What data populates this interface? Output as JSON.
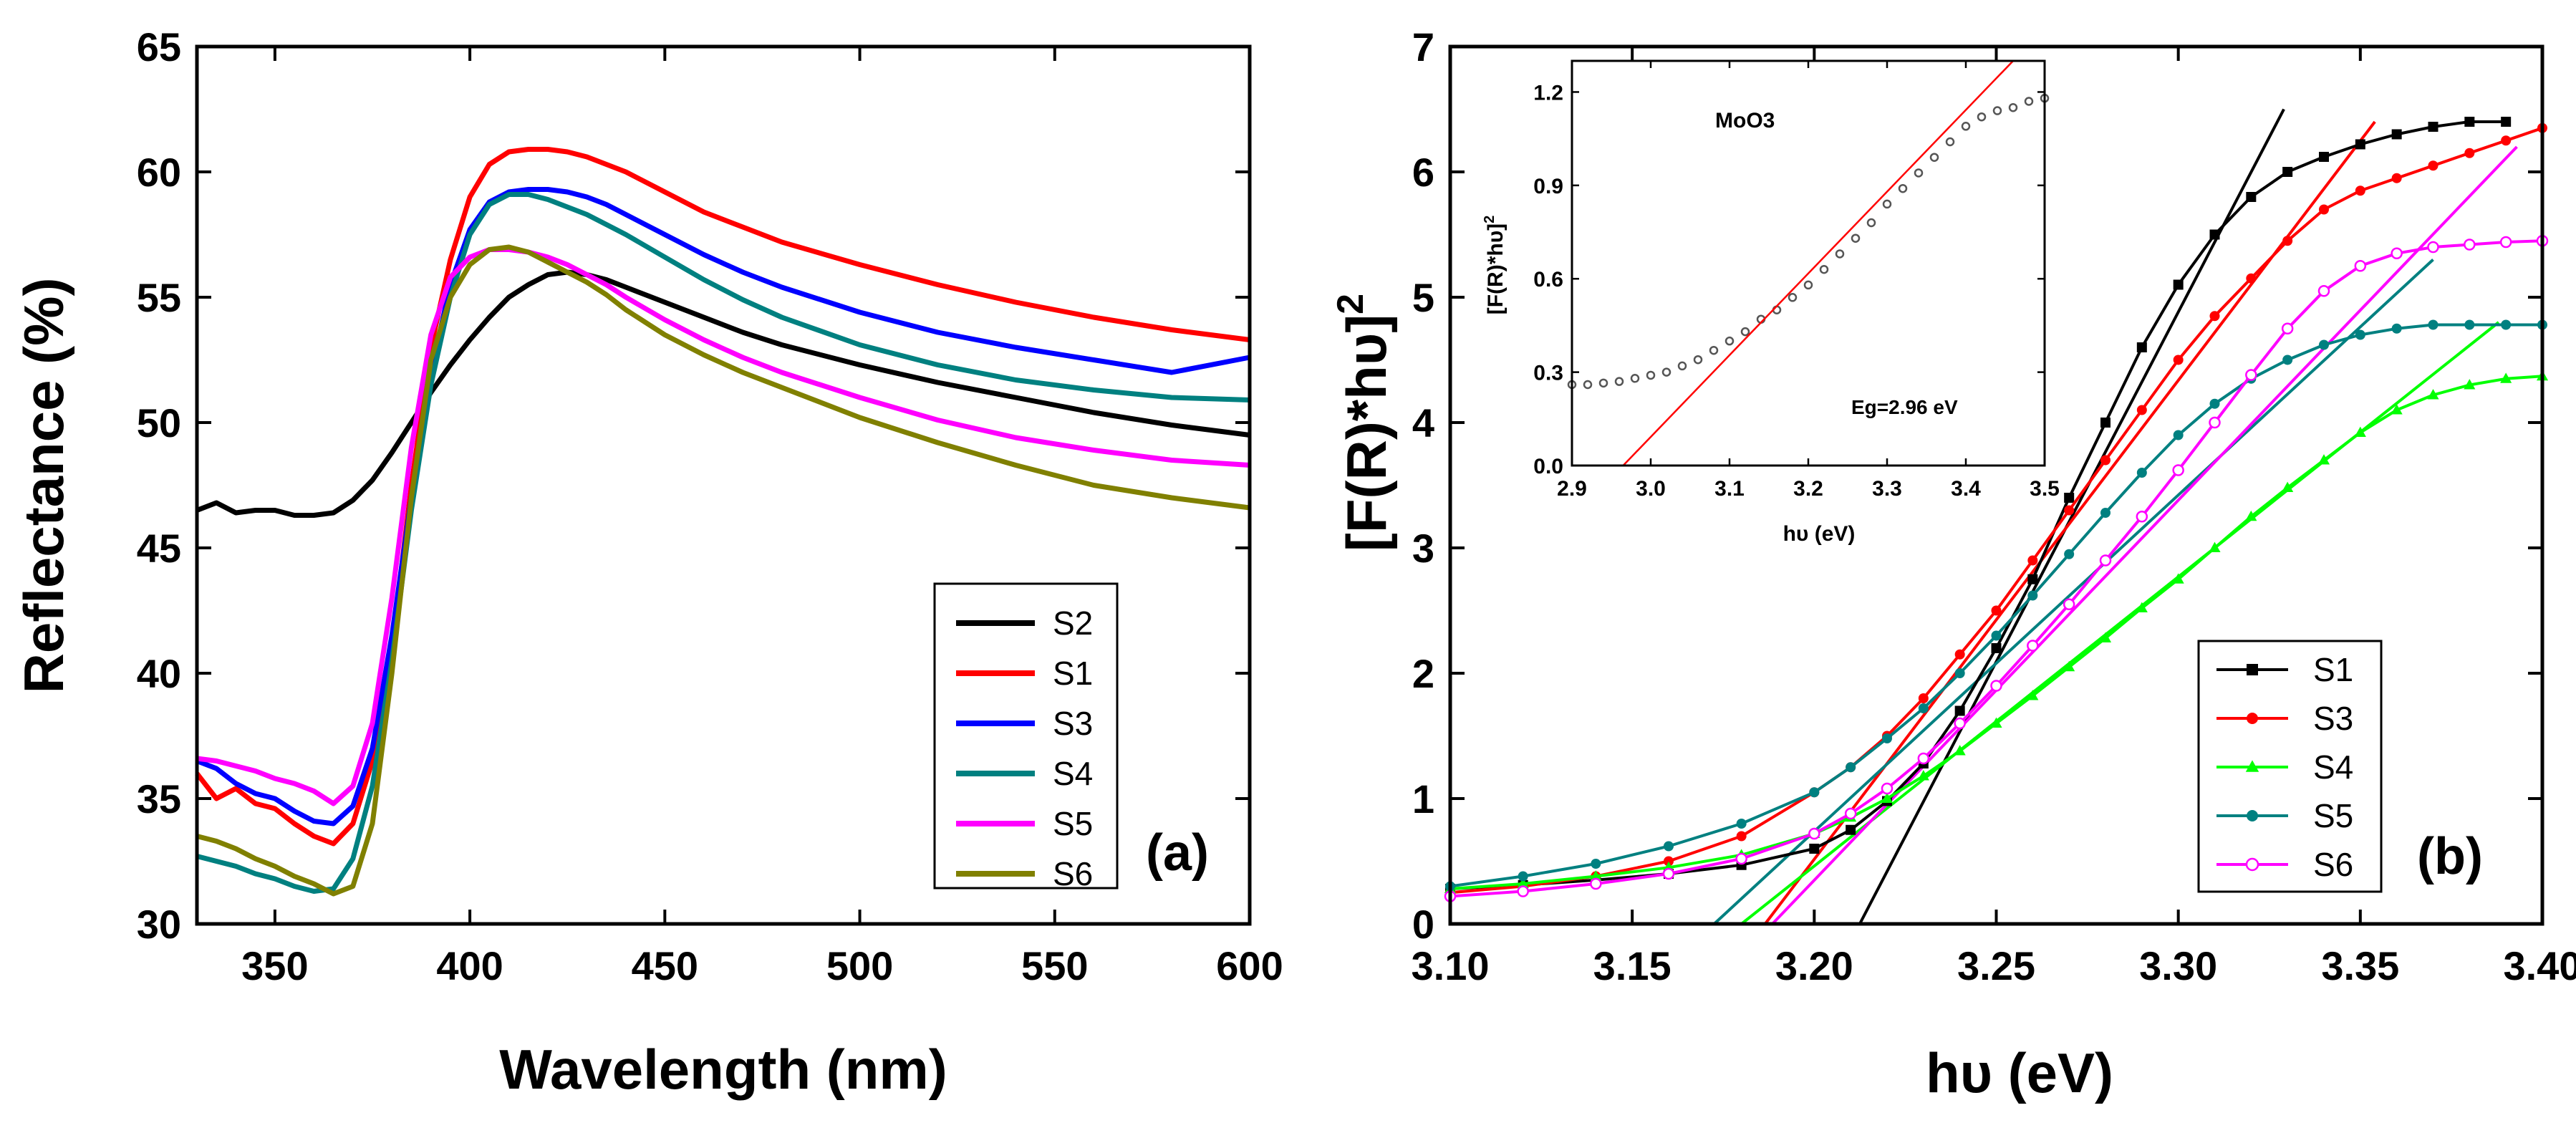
{
  "chart_data": [
    {
      "type": "line",
      "panel_label": "(a)",
      "xlabel": "Wavelength (nm)",
      "ylabel": "Reflectance (%)",
      "xlim": [
        330,
        600
      ],
      "ylim": [
        30,
        65
      ],
      "xticks": [
        "350",
        "400",
        "450",
        "500",
        "550",
        "600"
      ],
      "yticks": [
        "30",
        "35",
        "40",
        "45",
        "50",
        "55",
        "60",
        "65"
      ],
      "legend_position": "bottom-right",
      "series": [
        {
          "name": "S2",
          "color": "#000000",
          "x": [
            330,
            335,
            340,
            345,
            350,
            355,
            360,
            365,
            370,
            375,
            380,
            385,
            390,
            395,
            400,
            405,
            410,
            415,
            420,
            425,
            430,
            435,
            440,
            450,
            460,
            470,
            480,
            500,
            520,
            540,
            560,
            580,
            600
          ],
          "y": [
            46.5,
            46.8,
            46.4,
            46.5,
            46.5,
            46.3,
            46.3,
            46.4,
            46.9,
            47.7,
            48.8,
            50.0,
            51.2,
            52.3,
            53.3,
            54.2,
            55.0,
            55.5,
            55.9,
            56.0,
            55.9,
            55.7,
            55.4,
            54.8,
            54.2,
            53.6,
            53.1,
            52.3,
            51.6,
            51.0,
            50.4,
            49.9,
            49.5
          ]
        },
        {
          "name": "S1",
          "color": "#ff0000",
          "x": [
            330,
            335,
            340,
            345,
            350,
            355,
            360,
            365,
            370,
            375,
            380,
            385,
            390,
            395,
            400,
            405,
            410,
            415,
            420,
            425,
            430,
            435,
            440,
            450,
            460,
            470,
            480,
            500,
            520,
            540,
            560,
            580,
            600
          ],
          "y": [
            36.0,
            35.0,
            35.4,
            34.8,
            34.6,
            34.0,
            33.5,
            33.2,
            34.0,
            36.5,
            41.0,
            47.5,
            53.0,
            56.5,
            59.0,
            60.3,
            60.8,
            60.9,
            60.9,
            60.8,
            60.6,
            60.3,
            60.0,
            59.2,
            58.4,
            57.8,
            57.2,
            56.3,
            55.5,
            54.8,
            54.2,
            53.7,
            53.3
          ]
        },
        {
          "name": "S3",
          "color": "#0000ff",
          "x": [
            330,
            335,
            340,
            345,
            350,
            355,
            360,
            365,
            370,
            375,
            380,
            385,
            390,
            395,
            400,
            405,
            410,
            415,
            420,
            425,
            430,
            435,
            440,
            450,
            460,
            470,
            480,
            500,
            520,
            540,
            560,
            580,
            600
          ],
          "y": [
            36.5,
            36.2,
            35.6,
            35.2,
            35.0,
            34.5,
            34.1,
            34.0,
            34.7,
            37.0,
            41.5,
            47.0,
            52.0,
            55.5,
            57.7,
            58.8,
            59.2,
            59.3,
            59.3,
            59.2,
            59.0,
            58.7,
            58.3,
            57.5,
            56.7,
            56.0,
            55.4,
            54.4,
            53.6,
            53.0,
            52.5,
            52.0,
            52.6
          ]
        },
        {
          "name": "S4",
          "color": "#008080",
          "x": [
            330,
            335,
            340,
            345,
            350,
            355,
            360,
            365,
            370,
            375,
            380,
            385,
            390,
            395,
            400,
            405,
            410,
            415,
            420,
            425,
            430,
            435,
            440,
            450,
            460,
            470,
            480,
            500,
            520,
            540,
            560,
            580,
            600
          ],
          "y": [
            32.7,
            32.5,
            32.3,
            32.0,
            31.8,
            31.5,
            31.3,
            31.4,
            32.6,
            35.5,
            40.5,
            46.5,
            51.5,
            55.0,
            57.5,
            58.7,
            59.1,
            59.1,
            58.9,
            58.6,
            58.3,
            57.9,
            57.5,
            56.6,
            55.7,
            54.9,
            54.2,
            53.1,
            52.3,
            51.7,
            51.3,
            51.0,
            50.9
          ]
        },
        {
          "name": "S5",
          "color": "#ff00ff",
          "x": [
            330,
            335,
            340,
            345,
            350,
            355,
            360,
            365,
            370,
            375,
            380,
            385,
            390,
            395,
            400,
            405,
            410,
            415,
            420,
            425,
            430,
            435,
            440,
            450,
            460,
            470,
            480,
            500,
            520,
            540,
            560,
            580,
            600
          ],
          "y": [
            36.6,
            36.5,
            36.3,
            36.1,
            35.8,
            35.6,
            35.3,
            34.8,
            35.5,
            38.0,
            43.0,
            49.0,
            53.5,
            55.8,
            56.6,
            56.9,
            56.9,
            56.8,
            56.6,
            56.3,
            55.9,
            55.5,
            55.0,
            54.1,
            53.3,
            52.6,
            52.0,
            51.0,
            50.1,
            49.4,
            48.9,
            48.5,
            48.3
          ]
        },
        {
          "name": "S6",
          "color": "#808000",
          "x": [
            330,
            335,
            340,
            345,
            350,
            355,
            360,
            365,
            370,
            375,
            380,
            385,
            390,
            395,
            400,
            405,
            410,
            415,
            420,
            425,
            430,
            435,
            440,
            450,
            460,
            470,
            480,
            500,
            520,
            540,
            560,
            580,
            600
          ],
          "y": [
            33.5,
            33.3,
            33.0,
            32.6,
            32.3,
            31.9,
            31.6,
            31.2,
            31.5,
            34.0,
            40.0,
            47.0,
            52.5,
            55.0,
            56.3,
            56.9,
            57.0,
            56.8,
            56.4,
            56.0,
            55.6,
            55.1,
            54.5,
            53.5,
            52.7,
            52.0,
            51.4,
            50.2,
            49.2,
            48.3,
            47.5,
            47.0,
            46.6
          ]
        }
      ]
    },
    {
      "type": "line",
      "panel_label": "(b)",
      "xlabel": "hυ (eV)",
      "ylabel": "[F(R)*hυ]",
      "ylabel_superscript": "2",
      "xlim": [
        3.1,
        3.4
      ],
      "ylim": [
        0,
        7
      ],
      "xticks": [
        "3.10",
        "3.15",
        "3.20",
        "3.25",
        "3.30",
        "3.35",
        "3.40"
      ],
      "yticks": [
        "0",
        "1",
        "2",
        "3",
        "4",
        "5",
        "6",
        "7"
      ],
      "legend_position": "bottom-right",
      "series": [
        {
          "name": "S1",
          "color": "#000000",
          "marker": "square",
          "x": [
            3.1,
            3.12,
            3.14,
            3.16,
            3.18,
            3.2,
            3.21,
            3.22,
            3.23,
            3.24,
            3.25,
            3.26,
            3.27,
            3.28,
            3.29,
            3.3,
            3.31,
            3.32,
            3.33,
            3.34,
            3.35,
            3.36,
            3.37,
            3.38,
            3.39
          ],
          "y": [
            0.28,
            0.31,
            0.35,
            0.4,
            0.47,
            0.6,
            0.75,
            0.98,
            1.28,
            1.7,
            2.2,
            2.75,
            3.4,
            4.0,
            4.6,
            5.1,
            5.5,
            5.8,
            6.0,
            6.12,
            6.22,
            6.3,
            6.36,
            6.4,
            6.4
          ],
          "fit_line": {
            "x": [
              3.2125,
              3.329
            ],
            "y": [
              0.0,
              6.5
            ]
          }
        },
        {
          "name": "S3",
          "color": "#ff0000",
          "marker": "circle",
          "x": [
            3.1,
            3.12,
            3.14,
            3.16,
            3.18,
            3.2,
            3.21,
            3.22,
            3.23,
            3.24,
            3.25,
            3.26,
            3.27,
            3.28,
            3.29,
            3.3,
            3.31,
            3.32,
            3.33,
            3.34,
            3.35,
            3.36,
            3.37,
            3.38,
            3.39,
            3.4
          ],
          "y": [
            0.25,
            0.3,
            0.38,
            0.5,
            0.7,
            1.05,
            1.25,
            1.5,
            1.8,
            2.15,
            2.5,
            2.9,
            3.3,
            3.7,
            4.1,
            4.5,
            4.85,
            5.15,
            5.45,
            5.7,
            5.85,
            5.95,
            6.05,
            6.15,
            6.25,
            6.35
          ],
          "fit_line": {
            "x": [
              3.1865,
              3.354
            ],
            "y": [
              0.0,
              6.4
            ]
          }
        },
        {
          "name": "S4",
          "color": "#00ff00",
          "marker": "triangle",
          "x": [
            3.1,
            3.12,
            3.14,
            3.16,
            3.18,
            3.2,
            3.21,
            3.22,
            3.23,
            3.24,
            3.25,
            3.26,
            3.27,
            3.28,
            3.29,
            3.3,
            3.31,
            3.32,
            3.33,
            3.34,
            3.35,
            3.36,
            3.37,
            3.38,
            3.39,
            3.4
          ],
          "y": [
            0.28,
            0.32,
            0.38,
            0.45,
            0.55,
            0.72,
            0.85,
            1.0,
            1.18,
            1.38,
            1.6,
            1.82,
            2.05,
            2.28,
            2.52,
            2.75,
            3.0,
            3.25,
            3.48,
            3.7,
            3.92,
            4.1,
            4.22,
            4.3,
            4.35,
            4.37
          ],
          "fit_line": {
            "x": [
              3.18,
              3.388
            ],
            "y": [
              0.0,
              4.8
            ]
          }
        },
        {
          "name": "S5",
          "color": "#008080",
          "marker": "circle",
          "x": [
            3.1,
            3.12,
            3.14,
            3.16,
            3.18,
            3.2,
            3.21,
            3.22,
            3.23,
            3.24,
            3.25,
            3.26,
            3.27,
            3.28,
            3.29,
            3.3,
            3.31,
            3.32,
            3.33,
            3.34,
            3.35,
            3.36,
            3.37,
            3.38,
            3.39,
            3.4
          ],
          "y": [
            0.3,
            0.38,
            0.48,
            0.62,
            0.8,
            1.05,
            1.25,
            1.48,
            1.72,
            2.0,
            2.3,
            2.62,
            2.95,
            3.28,
            3.6,
            3.9,
            4.15,
            4.35,
            4.5,
            4.62,
            4.7,
            4.75,
            4.78,
            4.78,
            4.78,
            4.78
          ],
          "fit_line": {
            "x": [
              3.1725,
              3.37
            ],
            "y": [
              0.0,
              5.3
            ]
          }
        },
        {
          "name": "S6",
          "color": "#ff00ff",
          "marker": "circle-open",
          "x": [
            3.1,
            3.12,
            3.14,
            3.16,
            3.18,
            3.2,
            3.21,
            3.22,
            3.23,
            3.24,
            3.25,
            3.26,
            3.27,
            3.28,
            3.29,
            3.3,
            3.31,
            3.32,
            3.33,
            3.34,
            3.35,
            3.36,
            3.37,
            3.38,
            3.39,
            3.4
          ],
          "y": [
            0.22,
            0.26,
            0.32,
            0.4,
            0.52,
            0.72,
            0.88,
            1.08,
            1.32,
            1.6,
            1.9,
            2.22,
            2.55,
            2.9,
            3.25,
            3.62,
            4.0,
            4.38,
            4.75,
            5.05,
            5.25,
            5.35,
            5.4,
            5.42,
            5.44,
            5.45
          ],
          "fit_line": {
            "x": [
              3.1885,
              3.393
            ],
            "y": [
              0.0,
              6.2
            ]
          }
        }
      ],
      "inset": {
        "type": "line",
        "title": "MoO3",
        "annotation": "Eg=2.96 eV",
        "xlabel": "hυ (eV)",
        "ylabel": "[F(R)*hυ]",
        "ylabel_superscript": "2",
        "xlim": [
          2.9,
          3.5
        ],
        "ylim": [
          0.0,
          1.3
        ],
        "xticks": [
          "2.9",
          "3.0",
          "3.1",
          "3.2",
          "3.3",
          "3.4",
          "3.5"
        ],
        "yticks": [
          "0.0",
          "0.3",
          "0.6",
          "0.9",
          "1.2"
        ],
        "series": [
          {
            "name": "MoO3",
            "color": "#555555",
            "marker": "circle-open",
            "x": [
              2.9,
              2.92,
              2.94,
              2.96,
              2.98,
              3.0,
              3.02,
              3.04,
              3.06,
              3.08,
              3.1,
              3.12,
              3.14,
              3.16,
              3.18,
              3.2,
              3.22,
              3.24,
              3.26,
              3.28,
              3.3,
              3.32,
              3.34,
              3.36,
              3.38,
              3.4,
              3.42,
              3.44,
              3.46,
              3.48,
              3.5
            ],
            "y": [
              0.26,
              0.26,
              0.265,
              0.27,
              0.28,
              0.29,
              0.3,
              0.32,
              0.34,
              0.37,
              0.4,
              0.43,
              0.47,
              0.5,
              0.54,
              0.58,
              0.63,
              0.68,
              0.73,
              0.78,
              0.84,
              0.89,
              0.94,
              0.99,
              1.04,
              1.09,
              1.12,
              1.14,
              1.15,
              1.17,
              1.18
            ]
          }
        ],
        "fit_line": {
          "color": "#ff0000",
          "x": [
            2.965,
            3.46
          ],
          "y": [
            0.0,
            1.3
          ]
        }
      }
    }
  ]
}
